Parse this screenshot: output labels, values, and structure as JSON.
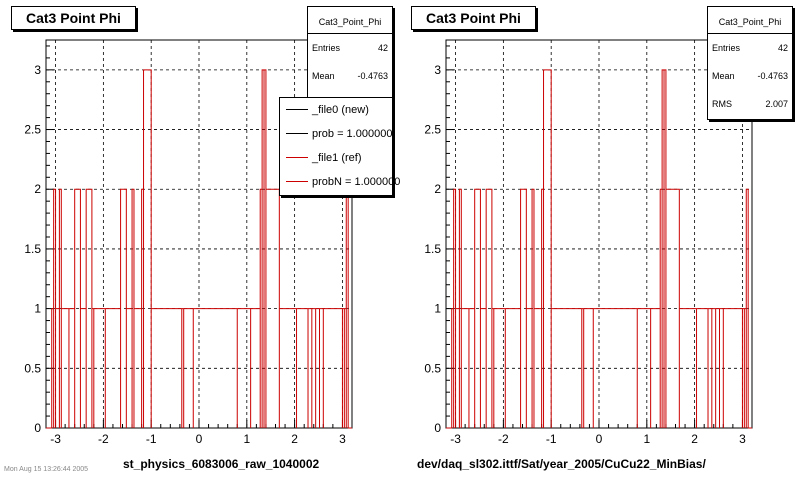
{
  "chart_data": [
    {
      "type": "bar",
      "histogram": true,
      "title": "Cat3 Point Phi",
      "xlabel": "st_physics_6083006_raw_1040002",
      "ylabel": "",
      "xlim": [
        -3.2,
        3.2
      ],
      "ylim": [
        0,
        3.25
      ],
      "xticks": [
        -3,
        -2,
        -1,
        0,
        1,
        2,
        3
      ],
      "yticks": [
        0,
        0.5,
        1,
        1.5,
        2,
        2.5,
        3
      ],
      "grid": true,
      "series": [
        {
          "name": "_file1 (ref)",
          "color": "#cc0000",
          "bins": [
            [
              -3.08,
              -3.04,
              1
            ],
            [
              -3.04,
              -3.0,
              2
            ],
            [
              -3.0,
              -2.96,
              1
            ],
            [
              -2.92,
              -2.88,
              2
            ],
            [
              -2.88,
              -2.84,
              1
            ],
            [
              -2.72,
              -2.68,
              1
            ],
            [
              -2.6,
              -2.56,
              2
            ],
            [
              -2.48,
              -2.44,
              1
            ],
            [
              -2.36,
              -2.32,
              2
            ],
            [
              -2.24,
              -2.2,
              1
            ],
            [
              -2.2,
              -2.16,
              1
            ],
            [
              -1.96,
              -1.92,
              1
            ],
            [
              -1.64,
              -1.6,
              2
            ],
            [
              -1.52,
              -1.48,
              1
            ],
            [
              -1.4,
              -1.36,
              2
            ],
            [
              -1.36,
              -1.32,
              1
            ],
            [
              -1.2,
              -1.16,
              2
            ],
            [
              -1.16,
              -1.12,
              3
            ],
            [
              -1.0,
              -0.96,
              1
            ],
            [
              -0.36,
              -0.32,
              1
            ],
            [
              -0.32,
              -0.28,
              1
            ],
            [
              -0.12,
              -0.08,
              1
            ],
            [
              0.8,
              0.84,
              1
            ],
            [
              1.08,
              1.12,
              1
            ],
            [
              1.28,
              1.32,
              2
            ],
            [
              1.32,
              1.36,
              3
            ],
            [
              1.36,
              1.4,
              3
            ],
            [
              1.4,
              1.44,
              2
            ],
            [
              1.68,
              1.72,
              1
            ],
            [
              2.04,
              2.08,
              1
            ],
            [
              2.28,
              2.32,
              1
            ],
            [
              2.36,
              2.4,
              1
            ],
            [
              2.44,
              2.48,
              1
            ],
            [
              2.52,
              2.56,
              1
            ],
            [
              2.6,
              2.64,
              1
            ],
            [
              3.0,
              3.04,
              1
            ],
            [
              3.04,
              3.08,
              1
            ],
            [
              3.08,
              3.12,
              2
            ]
          ]
        }
      ],
      "stats": {
        "name": "Cat3_Point_Phi",
        "entries_label": "Entries",
        "entries": "42",
        "mean_label": "Mean",
        "mean": "-0.4763"
      },
      "legend": {
        "placement": "top-right",
        "entries": [
          {
            "text": "_file0 (new)",
            "color": "#000000"
          },
          {
            "text": "prob = 1.000000",
            "color": "#000000"
          },
          {
            "text": "_file1 (ref)",
            "color": "#cc0000"
          },
          {
            "text": "probN = 1.000000",
            "color": "#cc0000"
          }
        ]
      }
    },
    {
      "type": "bar",
      "histogram": true,
      "title": "Cat3 Point Phi",
      "xlabel": "dev/daq_sl302.ittf/Sat/year_2005/CuCu22_MinBias/",
      "ylabel": "",
      "xlim": [
        -3.2,
        3.2
      ],
      "ylim": [
        0,
        3.25
      ],
      "xticks": [
        -3,
        -2,
        -1,
        0,
        1,
        2,
        3
      ],
      "yticks": [
        0,
        0.5,
        1,
        1.5,
        2,
        2.5,
        3
      ],
      "grid": true,
      "series": [
        {
          "name": "",
          "color": "#cc0000",
          "bins": [
            [
              -3.08,
              -3.04,
              1
            ],
            [
              -3.04,
              -3.0,
              2
            ],
            [
              -3.0,
              -2.96,
              1
            ],
            [
              -2.92,
              -2.88,
              2
            ],
            [
              -2.88,
              -2.84,
              1
            ],
            [
              -2.72,
              -2.68,
              1
            ],
            [
              -2.6,
              -2.56,
              2
            ],
            [
              -2.48,
              -2.44,
              1
            ],
            [
              -2.36,
              -2.32,
              2
            ],
            [
              -2.24,
              -2.2,
              1
            ],
            [
              -2.2,
              -2.16,
              1
            ],
            [
              -1.96,
              -1.92,
              1
            ],
            [
              -1.64,
              -1.6,
              2
            ],
            [
              -1.52,
              -1.48,
              1
            ],
            [
              -1.4,
              -1.36,
              2
            ],
            [
              -1.36,
              -1.32,
              1
            ],
            [
              -1.2,
              -1.16,
              2
            ],
            [
              -1.16,
              -1.12,
              3
            ],
            [
              -1.0,
              -0.96,
              1
            ],
            [
              -0.36,
              -0.32,
              1
            ],
            [
              -0.32,
              -0.28,
              1
            ],
            [
              -0.12,
              -0.08,
              1
            ],
            [
              0.8,
              0.84,
              1
            ],
            [
              1.08,
              1.12,
              1
            ],
            [
              1.28,
              1.32,
              2
            ],
            [
              1.32,
              1.36,
              3
            ],
            [
              1.36,
              1.4,
              3
            ],
            [
              1.4,
              1.44,
              2
            ],
            [
              1.68,
              1.72,
              1
            ],
            [
              2.04,
              2.08,
              1
            ],
            [
              2.28,
              2.32,
              1
            ],
            [
              2.36,
              2.4,
              1
            ],
            [
              2.44,
              2.48,
              1
            ],
            [
              2.52,
              2.56,
              1
            ],
            [
              2.6,
              2.64,
              1
            ],
            [
              3.0,
              3.04,
              1
            ],
            [
              3.04,
              3.08,
              1
            ],
            [
              3.08,
              3.12,
              2
            ]
          ]
        }
      ],
      "stats": {
        "name": "Cat3_Point_Phi",
        "entries_label": "Entries",
        "entries": "42",
        "mean_label": "Mean",
        "mean": "-0.4763",
        "rms_label": "RMS",
        "rms": "2.007"
      }
    }
  ],
  "footer": {
    "timestamp": "Mon Aug 15 13:26:44 2005"
  }
}
